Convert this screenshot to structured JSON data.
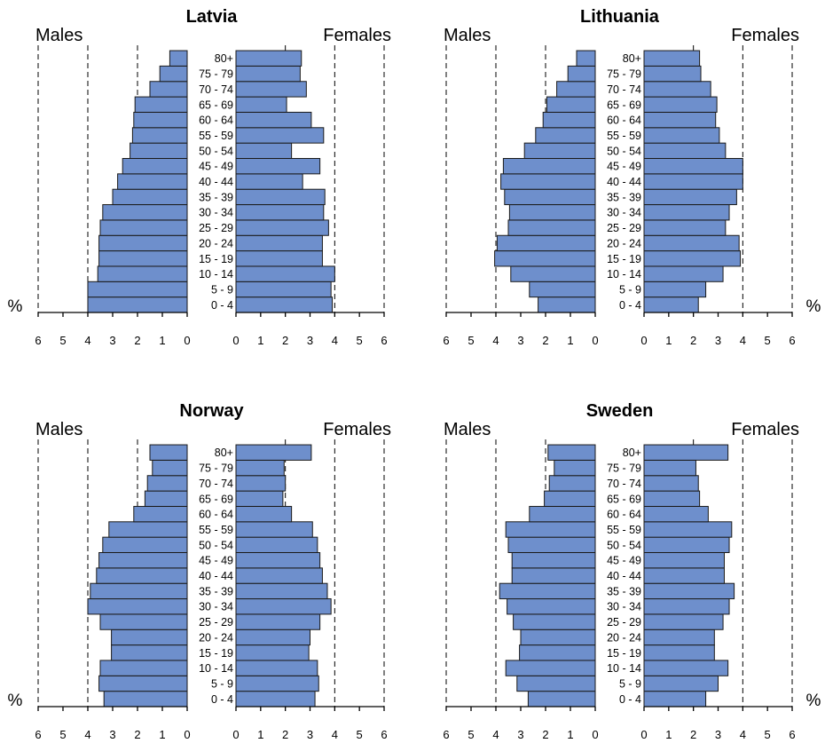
{
  "labels": {
    "males": "Males",
    "females": "Females",
    "percent": "%"
  },
  "chart_data": [
    {
      "type": "bar",
      "title": "Latvia",
      "categories": [
        "0 - 4",
        "5 - 9",
        "10 - 14",
        "15 - 19",
        "20 - 24",
        "25 - 29",
        "30 - 34",
        "35 - 39",
        "40 - 44",
        "45 - 49",
        "50 - 54",
        "55 - 59",
        "60 - 64",
        "65 - 69",
        "70 - 74",
        "75 - 79",
        "80+"
      ],
      "series": [
        {
          "name": "Males",
          "values": [
            4.0,
            4.0,
            3.6,
            3.55,
            3.55,
            3.5,
            3.4,
            3.0,
            2.8,
            2.6,
            2.3,
            2.2,
            2.15,
            2.1,
            1.5,
            1.1,
            0.7
          ]
        },
        {
          "name": "Females",
          "values": [
            3.9,
            3.85,
            4.0,
            3.5,
            3.5,
            3.75,
            3.55,
            3.6,
            2.7,
            3.4,
            2.25,
            3.55,
            3.05,
            2.05,
            2.85,
            2.6,
            2.65
          ]
        }
      ],
      "xlim": [
        0,
        6
      ],
      "xticks_males": [
        "6",
        "5",
        "4",
        "3",
        "2",
        "1",
        "0"
      ],
      "xticks_females": [
        "0",
        "1",
        "2",
        "3",
        "4",
        "5",
        "6"
      ],
      "reference_lines": [
        2,
        4,
        6
      ]
    },
    {
      "type": "bar",
      "title": "Lithuania",
      "categories": [
        "0 - 4",
        "5 - 9",
        "10 - 14",
        "15 - 19",
        "20 - 24",
        "25 - 29",
        "30 - 34",
        "35 - 39",
        "40 - 44",
        "45 - 49",
        "50 - 54",
        "55 - 59",
        "60 - 64",
        "65 - 69",
        "70 - 74",
        "75 - 79",
        "80+"
      ],
      "series": [
        {
          "name": "Males",
          "values": [
            2.3,
            2.65,
            3.4,
            4.05,
            3.95,
            3.5,
            3.45,
            3.65,
            3.8,
            3.7,
            2.85,
            2.4,
            2.1,
            1.95,
            1.55,
            1.1,
            0.75
          ]
        },
        {
          "name": "Females",
          "values": [
            2.2,
            2.5,
            3.2,
            3.9,
            3.85,
            3.3,
            3.45,
            3.75,
            4.0,
            4.0,
            3.3,
            3.05,
            2.9,
            2.95,
            2.7,
            2.3,
            2.25
          ]
        }
      ],
      "xlim": [
        0,
        6
      ],
      "xticks_males": [
        "6",
        "5",
        "4",
        "3",
        "2",
        "1",
        "0"
      ],
      "xticks_females": [
        "0",
        "1",
        "2",
        "3",
        "4",
        "5",
        "6"
      ],
      "reference_lines": [
        2,
        4,
        6
      ]
    },
    {
      "type": "bar",
      "title": "Norway",
      "categories": [
        "0 - 4",
        "5 - 9",
        "10 - 14",
        "15 - 19",
        "20 - 24",
        "25 - 29",
        "30 - 34",
        "35 - 39",
        "40 - 44",
        "45 - 49",
        "50 - 54",
        "55 - 59",
        "60 - 64",
        "65 - 69",
        "70 - 74",
        "75 - 79",
        "80+"
      ],
      "series": [
        {
          "name": "Males",
          "values": [
            3.35,
            3.55,
            3.5,
            3.05,
            3.05,
            3.5,
            4.0,
            3.9,
            3.65,
            3.55,
            3.4,
            3.15,
            2.15,
            1.7,
            1.6,
            1.4,
            1.5
          ]
        },
        {
          "name": "Females",
          "values": [
            3.2,
            3.35,
            3.3,
            2.95,
            3.0,
            3.4,
            3.85,
            3.7,
            3.5,
            3.4,
            3.3,
            3.1,
            2.25,
            1.9,
            2.0,
            1.95,
            3.05
          ]
        }
      ],
      "xlim": [
        0,
        6
      ],
      "xticks_males": [
        "6",
        "5",
        "4",
        "3",
        "2",
        "1",
        "0"
      ],
      "xticks_females": [
        "0",
        "1",
        "2",
        "3",
        "4",
        "5",
        "6"
      ],
      "reference_lines": [
        2,
        4,
        6
      ]
    },
    {
      "type": "bar",
      "title": "Sweden",
      "categories": [
        "0 - 4",
        "5 - 9",
        "10 - 14",
        "15 - 19",
        "20 - 24",
        "25 - 29",
        "30 - 34",
        "35 - 39",
        "40 - 44",
        "45 - 49",
        "50 - 54",
        "55 - 59",
        "60 - 64",
        "65 - 69",
        "70 - 74",
        "75 - 79",
        "80+"
      ],
      "series": [
        {
          "name": "Males",
          "values": [
            2.7,
            3.15,
            3.6,
            3.05,
            3.0,
            3.3,
            3.55,
            3.85,
            3.35,
            3.35,
            3.5,
            3.6,
            2.65,
            2.05,
            1.85,
            1.65,
            1.9
          ]
        },
        {
          "name": "Females",
          "values": [
            2.5,
            3.0,
            3.4,
            2.85,
            2.85,
            3.2,
            3.45,
            3.65,
            3.25,
            3.25,
            3.45,
            3.55,
            2.6,
            2.25,
            2.2,
            2.1,
            3.4
          ]
        }
      ],
      "xlim": [
        0,
        6
      ],
      "xticks_males": [
        "6",
        "5",
        "4",
        "3",
        "2",
        "1",
        "0"
      ],
      "xticks_females": [
        "0",
        "1",
        "2",
        "3",
        "4",
        "5",
        "6"
      ],
      "reference_lines": [
        2,
        4,
        6
      ]
    }
  ]
}
